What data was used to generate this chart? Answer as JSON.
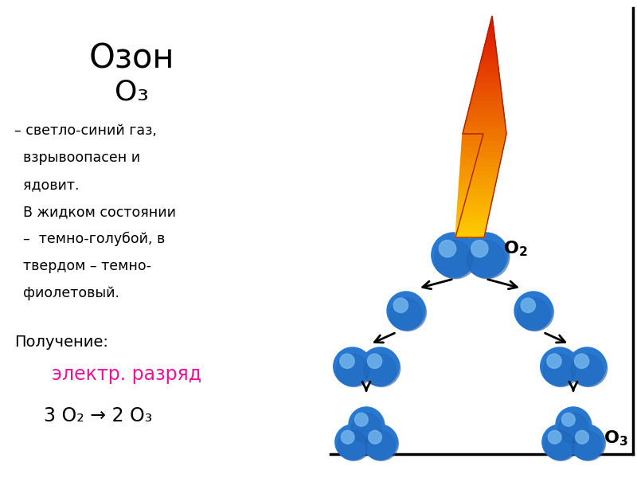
{
  "bg_color": "#ffffff",
  "text_color": "#000000",
  "pink_color": "#ee1199",
  "sphere_color": "#2878d0",
  "sphere_dark": "#1a5aaa",
  "sphere_highlight": "#7abcf0",
  "arrow_color": "#000000",
  "lightning_red": "#dd1100",
  "lightning_orange": "#ff8800",
  "lightning_yellow": "#ffcc00",
  "border_color": "#000000",
  "title": "Озон",
  "formula": "O₃",
  "desc_lines": [
    "– светло-синий газ,",
    "  взрывоопасен и",
    "  ядовит.",
    "  В жидком состоянии",
    "  –  темно-голубой, в",
    "  твердом – темно-",
    "  фиолетовый."
  ],
  "poluchenie": "Получение:",
  "elektr": "электр. разряд",
  "equation": "3 O₂ → 2 O₃"
}
